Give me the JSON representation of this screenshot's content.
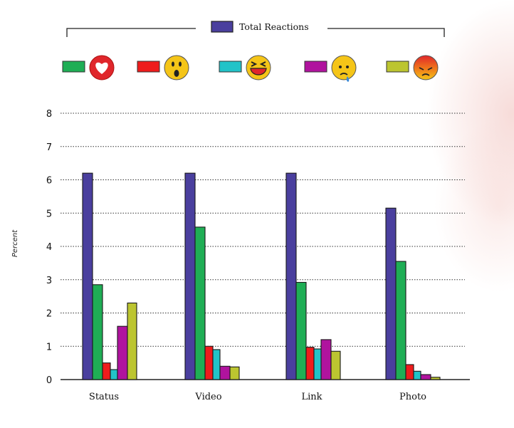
{
  "chart_data": {
    "type": "bar",
    "title": "",
    "xlabel": "",
    "ylabel": "Percent",
    "ylim": [
      0,
      8
    ],
    "yticks": [
      "0",
      "1",
      "2",
      "3",
      "4",
      "5",
      "6",
      "7",
      "8"
    ],
    "grid": true,
    "legend_placement": "top",
    "categories": [
      "Status",
      "Video",
      "Link",
      "Photo"
    ],
    "series": [
      {
        "name": "Total Reactions",
        "icon": "total-swatch",
        "color": "#4a3f9e",
        "values": [
          6.2,
          6.2,
          6.2,
          5.15
        ]
      },
      {
        "name": "Love",
        "icon": "love-emoji-icon",
        "color": "#1fae55",
        "values": [
          2.85,
          4.58,
          2.92,
          3.55
        ]
      },
      {
        "name": "Wow",
        "icon": "wow-emoji-icon",
        "color": "#ee1c1c",
        "values": [
          0.5,
          1.0,
          0.97,
          0.45
        ]
      },
      {
        "name": "Haha",
        "icon": "haha-emoji-icon",
        "color": "#22c3c8",
        "values": [
          0.3,
          0.9,
          0.92,
          0.25
        ]
      },
      {
        "name": "Sad",
        "icon": "sad-emoji-icon",
        "color": "#b0139e",
        "values": [
          1.6,
          0.4,
          1.2,
          0.15
        ]
      },
      {
        "name": "Angry",
        "icon": "angry-emoji-icon",
        "color": "#bcc530",
        "values": [
          2.3,
          0.38,
          0.85,
          0.07
        ]
      }
    ]
  }
}
